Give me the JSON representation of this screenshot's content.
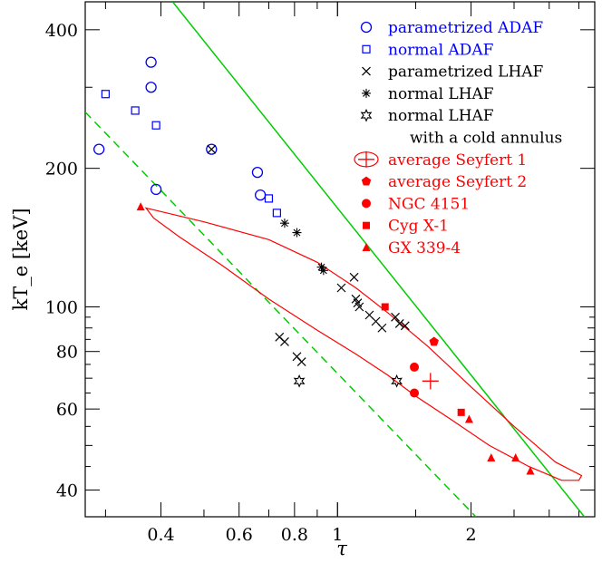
{
  "chart_data": {
    "type": "scatter",
    "title": "",
    "xlabel": "τ",
    "ylabel": "kT_e [keV]",
    "xscale": "log",
    "yscale": "log",
    "xlim": [
      0.27,
      3.8
    ],
    "ylim": [
      35,
      460
    ],
    "xticks": [
      0.4,
      0.6,
      0.8,
      1,
      2
    ],
    "xtick_labels": [
      "0.4",
      "0.6",
      "0.8",
      "1",
      "2"
    ],
    "yticks": [
      40,
      60,
      80,
      100,
      200,
      400
    ],
    "ytick_labels": [
      "40",
      "60",
      "80",
      "100",
      "200",
      "400"
    ],
    "grid": false,
    "legend_position": "top-right",
    "colors": {
      "adaf": "#0000ff",
      "lhaf": "#000000",
      "obs": "#ff0000",
      "line": "#00cc00"
    },
    "series": [
      {
        "name": "parametrized ADAF",
        "marker": "circle-open",
        "color": "#0000ff",
        "x": [
          0.29,
          0.38,
          0.38,
          0.39,
          0.52,
          0.66,
          0.67
        ],
        "y": [
          220,
          340,
          300,
          180,
          220,
          196,
          175
        ]
      },
      {
        "name": "normal ADAF",
        "marker": "square-open",
        "color": "#0000ff",
        "x": [
          0.3,
          0.35,
          0.39,
          0.7,
          0.73
        ],
        "y": [
          290,
          267,
          248,
          172,
          160
        ]
      },
      {
        "name": "parametrized LHAF",
        "marker": "cross",
        "color": "#000000",
        "x": [
          0.52,
          0.74,
          0.76,
          0.81,
          0.83,
          1.02,
          1.09,
          1.1,
          1.11,
          1.12,
          1.18,
          1.22,
          1.26,
          1.35,
          1.38,
          1.42
        ],
        "y": [
          220,
          86,
          84,
          78,
          76,
          110,
          116,
          104,
          102,
          100,
          96,
          93,
          90,
          95,
          92,
          91
        ]
      },
      {
        "name": "normal LHAF",
        "marker": "asterisk",
        "color": "#000000",
        "x": [
          0.76,
          0.81,
          0.92,
          0.93
        ],
        "y": [
          152,
          145,
          122,
          120
        ]
      },
      {
        "name": "normal LHAF with a cold annulus",
        "marker": "star-open",
        "color": "#000000",
        "x": [
          0.82,
          1.36
        ],
        "y": [
          69,
          69
        ]
      },
      {
        "name": "average Seyfert 1",
        "marker": "plus-ellipse",
        "color": "#ff0000",
        "x": [
          1.62
        ],
        "y": [
          69
        ]
      },
      {
        "name": "average Seyfert 2",
        "marker": "pentagon",
        "color": "#ff0000",
        "x": [
          1.65
        ],
        "y": [
          84
        ]
      },
      {
        "name": "NGC 4151",
        "marker": "circle-filled",
        "color": "#ff0000",
        "x": [
          1.49,
          1.49
        ],
        "y": [
          74,
          65
        ]
      },
      {
        "name": "Cyg X-1",
        "marker": "square-filled",
        "color": "#ff0000",
        "x": [
          1.28,
          1.9
        ],
        "y": [
          100,
          59
        ]
      },
      {
        "name": "GX 339-4",
        "marker": "triangle-filled",
        "color": "#ff0000",
        "x": [
          1.98,
          2.22,
          2.52,
          2.72,
          0.36
        ],
        "y": [
          57,
          47,
          47,
          44,
          165
        ]
      }
    ],
    "lines": [
      {
        "style": "solid",
        "color": "#00cc00",
        "x": [
          0.425,
          3.6
        ],
        "y": [
          460,
          35
        ]
      },
      {
        "style": "dashed",
        "color": "#00cc00",
        "x": [
          0.27,
          2.05
        ],
        "y": [
          265,
          35
        ]
      }
    ],
    "contour": {
      "color": "#ff0000",
      "x": [
        0.37,
        0.5,
        0.7,
        0.9,
        1.1,
        1.3,
        1.6,
        2.0,
        2.5,
        3.1,
        3.55,
        3.5,
        3.2,
        2.7,
        2.2,
        1.8,
        1.5,
        1.3,
        1.1,
        0.9,
        0.7,
        0.55,
        0.44,
        0.385,
        0.37
      ],
      "y": [
        164,
        153,
        140,
        125,
        110,
        97,
        82,
        67,
        55,
        46,
        43,
        42,
        42,
        45,
        50,
        57,
        64,
        71,
        79,
        89,
        104,
        123,
        142,
        156,
        164
      ]
    },
    "legend": [
      {
        "label": "parametrized ADAF",
        "marker": "circle-open",
        "color": "#0000ff"
      },
      {
        "label": "normal ADAF",
        "marker": "square-open",
        "color": "#0000ff"
      },
      {
        "label": "parametrized LHAF",
        "marker": "cross",
        "color": "#000000"
      },
      {
        "label": "normal LHAF",
        "marker": "asterisk",
        "color": "#000000"
      },
      {
        "label": "normal LHAF",
        "marker": "star-open",
        "color": "#000000"
      },
      {
        "label": "with a cold annulus",
        "marker": "",
        "color": "#000000"
      },
      {
        "label": "average Seyfert 1",
        "marker": "plus-ellipse",
        "color": "#ff0000"
      },
      {
        "label": "average Seyfert 2",
        "marker": "pentagon",
        "color": "#ff0000"
      },
      {
        "label": "NGC 4151",
        "marker": "circle-filled",
        "color": "#ff0000"
      },
      {
        "label": "Cyg X-1",
        "marker": "square-filled",
        "color": "#ff0000"
      },
      {
        "label": "GX 339-4",
        "marker": "triangle-filled",
        "color": "#ff0000"
      }
    ]
  }
}
